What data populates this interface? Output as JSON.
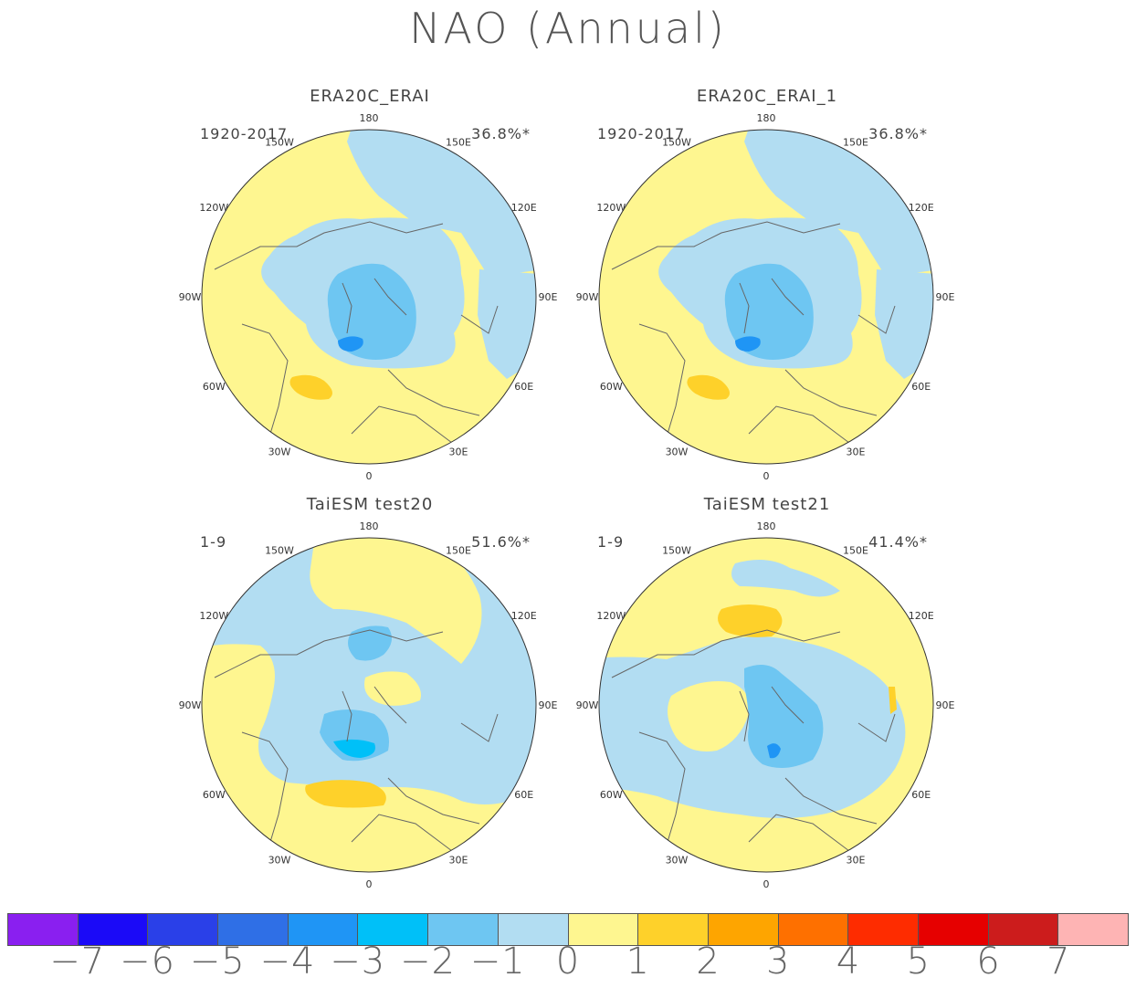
{
  "title": "NAO (Annual)",
  "panels": [
    {
      "title": "ERA20C_ERAI",
      "period": "1920-2017",
      "variance": "36.8%*"
    },
    {
      "title": "ERA20C_ERAI_1",
      "period": "1920-2017",
      "variance": "36.8%*"
    },
    {
      "title": "TaiESM test20",
      "period": "1-9",
      "variance": "51.6%*"
    },
    {
      "title": "TaiESM test21",
      "period": "1-9",
      "variance": "41.4%*"
    }
  ],
  "longitude_labels": [
    "180",
    "150E",
    "120E",
    "90E",
    "60E",
    "30E",
    "0",
    "30W",
    "60W",
    "90W",
    "120W",
    "150W"
  ],
  "colorbar": {
    "labels": [
      "-7",
      "-6",
      "-5",
      "-4",
      "-3",
      "-2",
      "-1",
      "0",
      "1",
      "2",
      "3",
      "4",
      "5",
      "6",
      "7"
    ],
    "colors": [
      "#8a1ff0",
      "#1b0af7",
      "#2a40e8",
      "#2f6fe6",
      "#1f95f5",
      "#00c0f8",
      "#6ec6f2",
      "#b2ddf2",
      "#fef690",
      "#fed12a",
      "#fea500",
      "#fe7000",
      "#fe2c00",
      "#e60000",
      "#cc1c1c",
      "#feb4b4"
    ]
  }
}
